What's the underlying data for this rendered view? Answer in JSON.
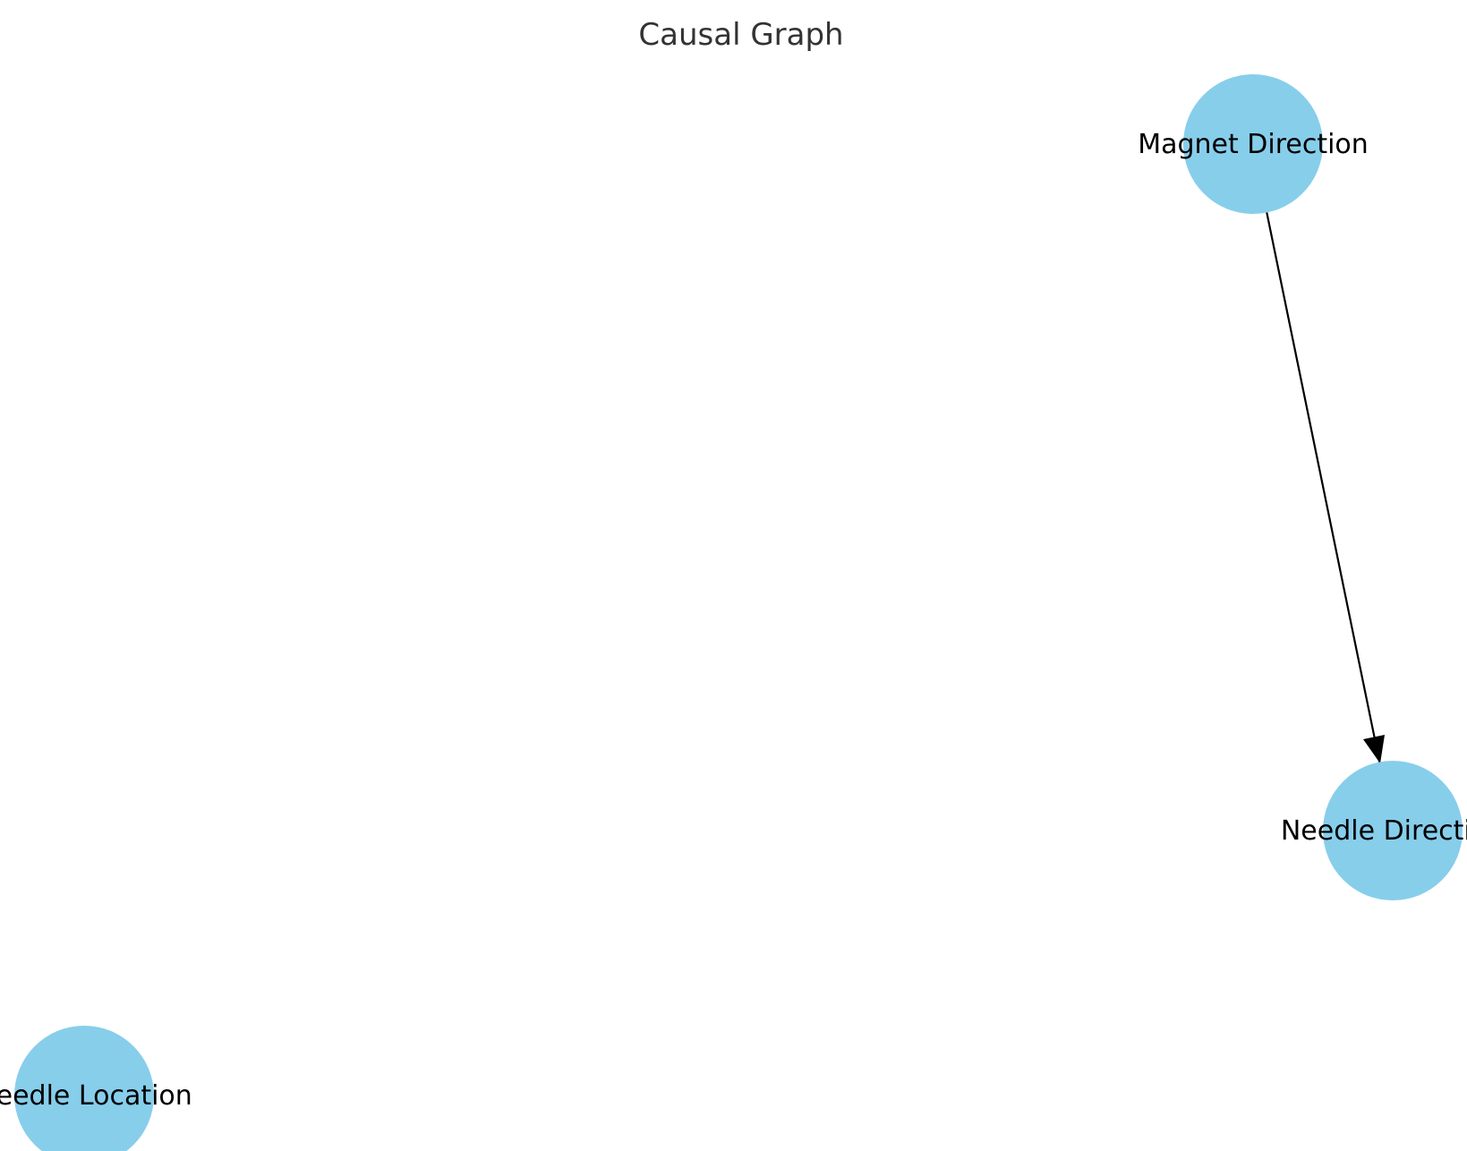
{
  "title": "Causal Graph",
  "colors": {
    "node_fill": "#87CEEB",
    "edge": "#000000",
    "title": "#333333",
    "label": "#000000",
    "background": "#FFFFFF"
  },
  "nodes": [
    {
      "id": "magnet_direction",
      "label": "Magnet Direction"
    },
    {
      "id": "needle_direction",
      "label": "Needle Direction"
    },
    {
      "id": "needle_location",
      "label": "Needle Location"
    }
  ],
  "edges": [
    {
      "from": "magnet_direction",
      "to": "needle_direction"
    }
  ]
}
